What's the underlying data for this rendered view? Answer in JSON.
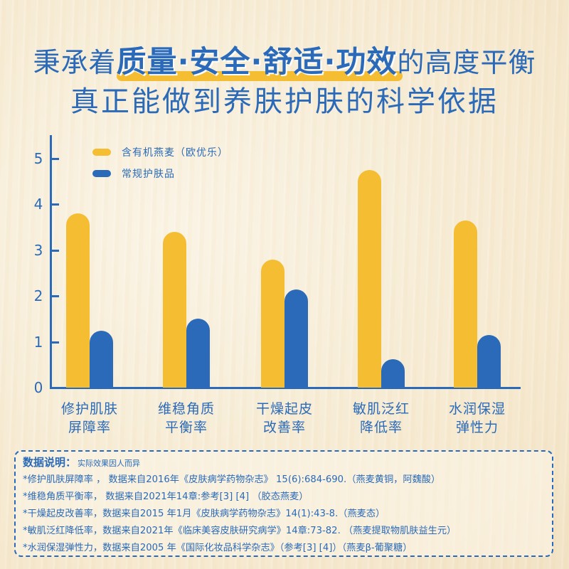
{
  "header": {
    "line1_prefix": "秉承着",
    "line1_highlight": "质量·安全·舒适·功效",
    "line1_suffix": "的高度平衡",
    "line2": "真正能做到养肤护肤的科学依据"
  },
  "colors": {
    "primary_blue": "#2a6ab8",
    "accent_yellow": "#f5bd32",
    "background": "#f7ecd6"
  },
  "chart_data": {
    "type": "bar",
    "title": "秉承着质量·安全·舒适·功效的高度平衡 真正能做到养肤护肤的科学依据",
    "categories": [
      "修护肌肤屏障率",
      "维稳角质平衡率",
      "干燥起皮改善率",
      "敏肌泛红降低率",
      "水润保湿弹性力"
    ],
    "category_lines": [
      [
        "修护肌肤",
        "屏障率"
      ],
      [
        "维稳角质",
        "平衡率"
      ],
      [
        "干燥起皮",
        "改善率"
      ],
      [
        "敏肌泛红",
        "降低率"
      ],
      [
        "水润保湿",
        "弹性力"
      ]
    ],
    "series": [
      {
        "name": "含有机燕麦（欧优乐）",
        "color": "#f5bd32",
        "values": [
          3.8,
          3.4,
          2.8,
          4.75,
          3.65
        ]
      },
      {
        "name": "常规护肤品",
        "color": "#2a6ab8",
        "values": [
          1.25,
          1.5,
          2.15,
          0.62,
          1.15
        ]
      }
    ],
    "xlabel": "",
    "ylabel": "",
    "ylim": [
      0,
      5.5
    ],
    "yticks": [
      "0",
      "1",
      "2",
      "3",
      "4",
      "5"
    ],
    "grid": false,
    "legend_position": "top-left"
  },
  "legend": {
    "items": [
      {
        "label": "含有机燕麦（欧优乐）"
      },
      {
        "label": "常规护肤品"
      }
    ]
  },
  "notes": {
    "heading": "数据说明：",
    "subheading": "实际效果因人而异",
    "lines": [
      "*修护肌肤屏障率 ， 数据来自2016年《皮肤病学药物杂志》 15(6):684-690.（燕麦黄铜，阿魏酸）",
      "*维稳角质平衡率， 数据来自2021年14章:参考[3] [4]  （胶态燕麦）",
      "*干燥起皮改善率，数据来自2015 年1月《皮肤病学药物杂志》14(1):43-8.（燕麦态）",
      "*敏肌泛红降低率，数据来自2021年《临床美容皮肤研究病学》14章:73-82. （燕麦提取物肌肤益生元）",
      "*水润保湿弹性力，数据来自2005 年《国际化妆品科学杂志》（参考[3] [4]）（燕麦β-葡聚糖）"
    ]
  }
}
